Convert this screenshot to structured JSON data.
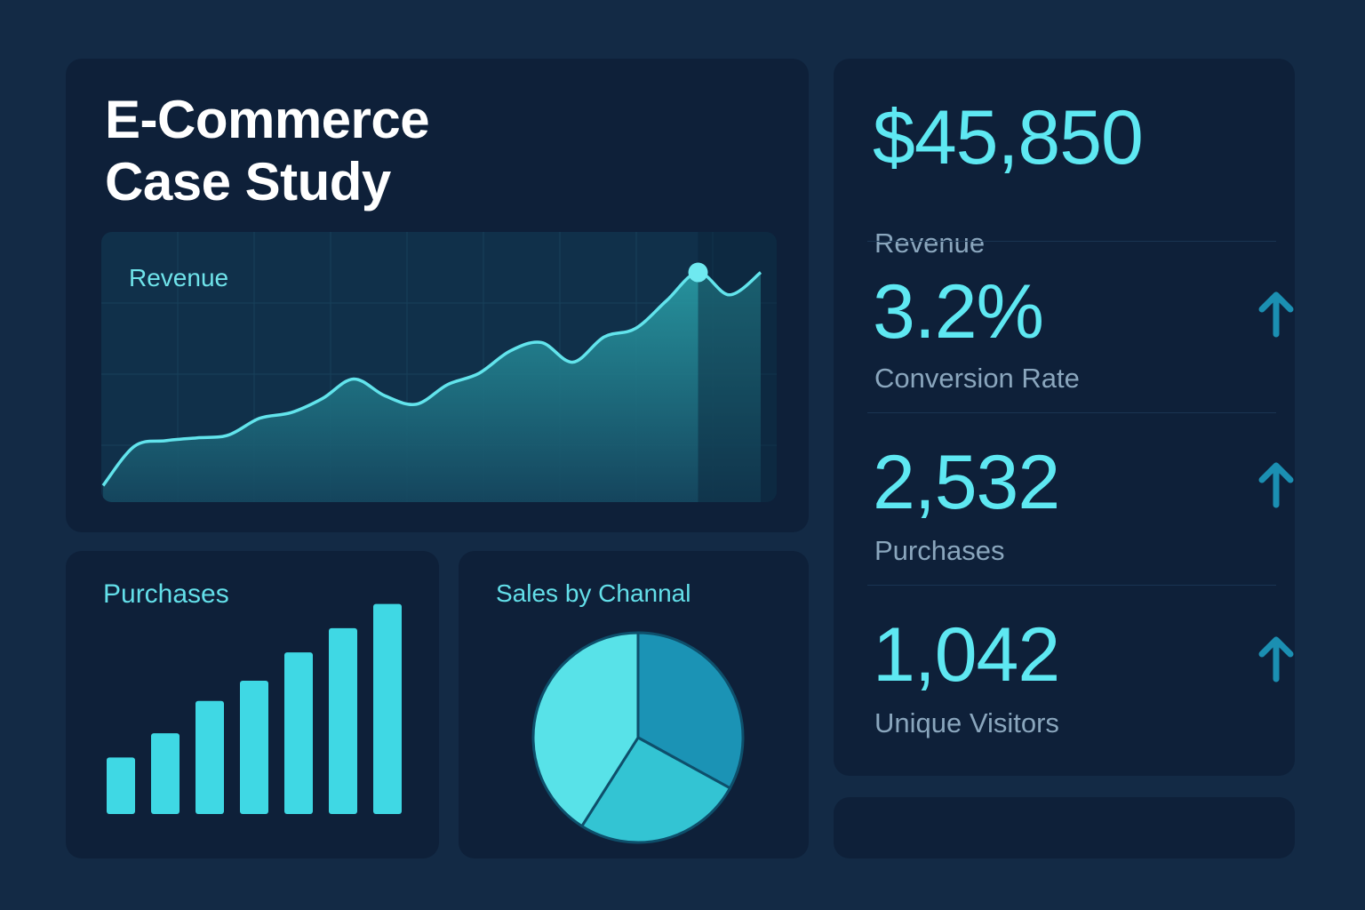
{
  "hero": {
    "title_line1": "E-Commerce",
    "title_line2": "Case Study",
    "chart_label": "Revenue"
  },
  "stats": [
    {
      "value": "$45,850",
      "label": "Revenue",
      "trend": "none"
    },
    {
      "value": "3.2%",
      "label": "Conversion Rate",
      "trend": "up"
    },
    {
      "value": "2,532",
      "label": "Purchases",
      "trend": "up"
    },
    {
      "value": "1,042",
      "label": "Unique Visitors",
      "trend": "up"
    }
  ],
  "purchases": {
    "title": "Purchases"
  },
  "channel": {
    "title": "Sales by Channal"
  },
  "colors": {
    "accent": "#5ee8f2",
    "bar": "#3fd8e4",
    "pie_a": "#58e2e8",
    "pie_b": "#1b93b5",
    "pie_c": "#33c4d3",
    "arrow": "#1b8fb2"
  },
  "chart_data": [
    {
      "type": "area",
      "title": "Revenue",
      "x": [
        0,
        1,
        2,
        3,
        4,
        5,
        6,
        7,
        8,
        9,
        10,
        11,
        12,
        13,
        14,
        15,
        16,
        17,
        18,
        19,
        20,
        21
      ],
      "values": [
        4,
        18,
        20,
        21,
        22,
        28,
        30,
        35,
        42,
        36,
        33,
        40,
        44,
        52,
        55,
        48,
        57,
        60,
        70,
        80,
        72,
        80
      ],
      "highlight_index": 19,
      "ylim": [
        0,
        90
      ],
      "grid": true
    },
    {
      "type": "bar",
      "title": "Purchases",
      "categories": [
        "1",
        "2",
        "3",
        "4",
        "5",
        "6",
        "7"
      ],
      "values": [
        14,
        20,
        28,
        33,
        40,
        46,
        52
      ],
      "ylim": [
        0,
        55
      ]
    },
    {
      "type": "pie",
      "title": "Sales by Channal",
      "values": [
        33,
        26,
        41
      ]
    }
  ]
}
